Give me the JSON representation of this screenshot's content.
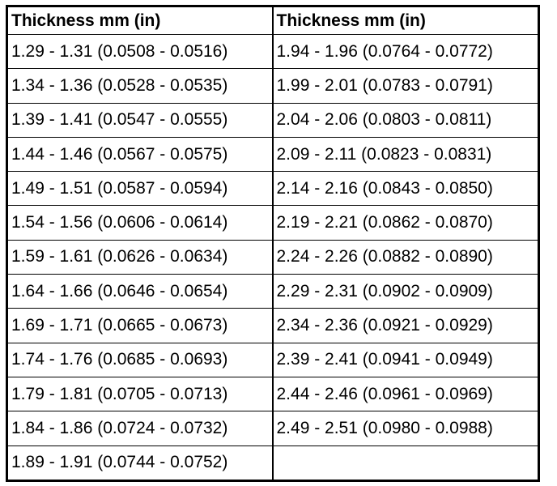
{
  "table": {
    "columns": [
      {
        "header": "Thickness mm (in)",
        "cells": [
          "1.29 - 1.31 (0.0508 - 0.0516)",
          "1.34 - 1.36 (0.0528 - 0.0535)",
          "1.39 - 1.41 (0.0547 - 0.0555)",
          "1.44 - 1.46 (0.0567 - 0.0575)",
          "1.49 - 1.51 (0.0587 - 0.0594)",
          "1.54 - 1.56 (0.0606 - 0.0614)",
          "1.59 - 1.61 (0.0626 - 0.0634)",
          "1.64 - 1.66 (0.0646 - 0.0654)",
          "1.69 - 1.71 (0.0665 - 0.0673)",
          "1.74 - 1.76 (0.0685 - 0.0693)",
          "1.79 - 1.81 (0.0705 - 0.0713)",
          "1.84 - 1.86 (0.0724 - 0.0732)",
          "1.89 - 1.91 (0.0744 - 0.0752)"
        ]
      },
      {
        "header": "Thickness mm (in)",
        "cells": [
          "1.94 - 1.96 (0.0764 - 0.0772)",
          "1.99 - 2.01 (0.0783 - 0.0791)",
          "2.04 - 2.06 (0.0803 - 0.0811)",
          "2.09 - 2.11 (0.0823 - 0.0831)",
          "2.14 - 2.16 (0.0843 - 0.0850)",
          "2.19 - 2.21 (0.0862 - 0.0870)",
          "2.24 - 2.26 (0.0882 - 0.0890)",
          "2.29 - 2.31 (0.0902 - 0.0909)",
          "2.34 - 2.36 (0.0921 - 0.0929)",
          "2.39 - 2.41 (0.0941 - 0.0949)",
          "2.44 - 2.46 (0.0961 - 0.0969)",
          "2.49 - 2.51 (0.0980 - 0.0988)"
        ]
      }
    ]
  }
}
